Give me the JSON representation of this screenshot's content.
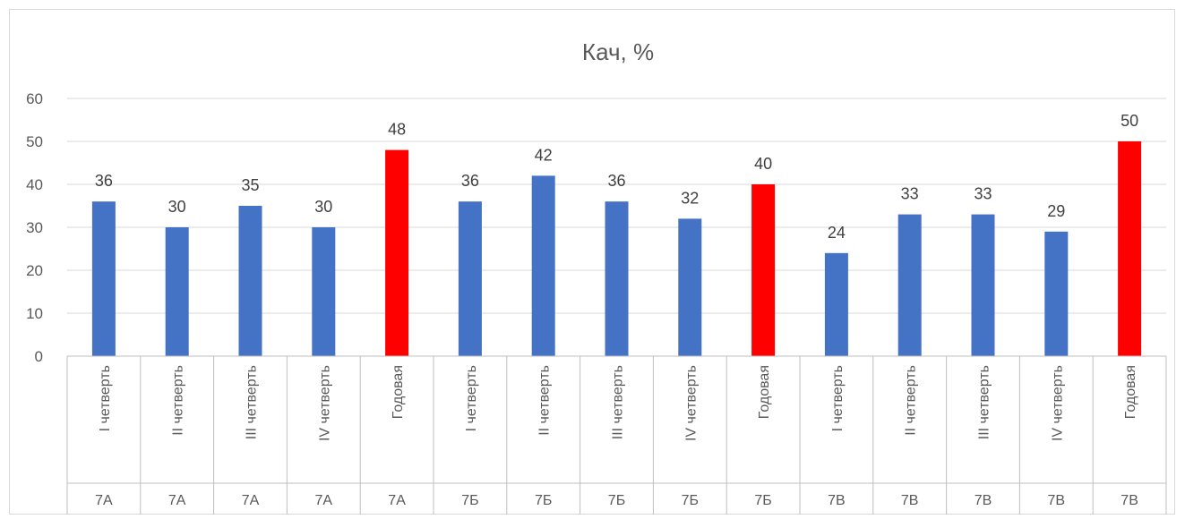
{
  "chart_data": {
    "type": "bar",
    "title": "Кач, %",
    "xlabel": "",
    "ylabel": "",
    "ylim": [
      0,
      60
    ],
    "yticks": [
      0,
      10,
      20,
      30,
      40,
      50,
      60
    ],
    "grid": true,
    "categories": [
      "I четверть",
      "II четверть",
      "III четверть",
      "IV четверть",
      "Годовая",
      "I четверть",
      "II четверть",
      "III четверть",
      "IV четверть",
      "Годовая",
      "I четверть",
      "II четверть",
      "III четверть",
      "IV четверть",
      "Годовая"
    ],
    "groups": [
      "7А",
      "7А",
      "7А",
      "7А",
      "7А",
      "7Б",
      "7Б",
      "7Б",
      "7Б",
      "7Б",
      "7В",
      "7В",
      "7В",
      "7В",
      "7В"
    ],
    "values": [
      36,
      30,
      35,
      30,
      48,
      36,
      42,
      36,
      32,
      40,
      24,
      33,
      33,
      29,
      50
    ],
    "colors": {
      "quarter": "#4472c4",
      "annual": "#ff0000"
    },
    "highlight_category": "Годовая"
  }
}
